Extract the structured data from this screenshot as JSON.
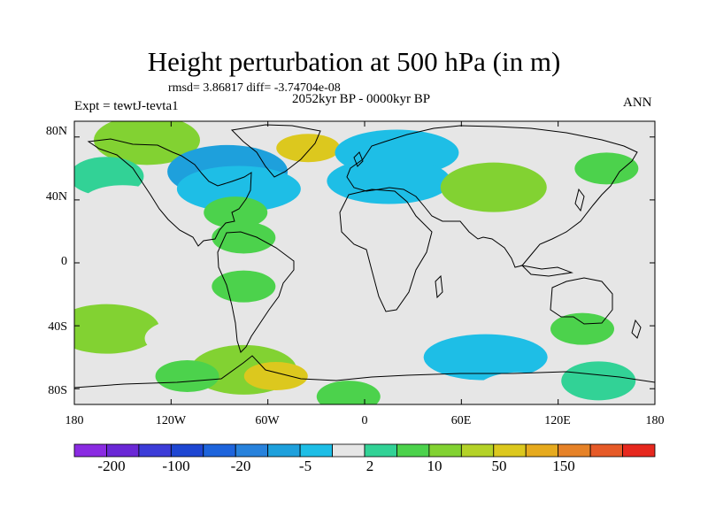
{
  "title": "Height perturbation at 500 hPa (in m)",
  "stats_text": "rmsd= 3.86817 diff= -3.74704e-08",
  "period_text": "2052kyr BP - 0000kyr BP",
  "experiment_text": "Expt = tewtJ-tevta1",
  "season_text": "ANN",
  "map": {
    "projection": "cylindrical equidistant",
    "lon_range": [
      -180,
      180
    ],
    "lat_range": [
      -90,
      90
    ],
    "background_color": "#e6e6e6",
    "x_tick_labels": [
      "180",
      "120W",
      "60W",
      "0",
      "60E",
      "120E",
      "180"
    ],
    "y_tick_labels": [
      "80N",
      "40N",
      "0",
      "40S",
      "80S"
    ],
    "anomaly_regions": [
      {
        "lon": -135,
        "lat": 78,
        "class": 11
      },
      {
        "lon": -160,
        "lat": 55,
        "class": 9
      },
      {
        "lon": -150,
        "lat": 37,
        "class": 8
      },
      {
        "lon": -85,
        "lat": 58,
        "class": 6
      },
      {
        "lon": -78,
        "lat": 47,
        "class": 7
      },
      {
        "lon": -35,
        "lat": 73,
        "class": 13
      },
      {
        "lon": -80,
        "lat": 32,
        "class": 10
      },
      {
        "lon": -75,
        "lat": 16,
        "class": 10
      },
      {
        "lon": 20,
        "lat": 70,
        "class": 7
      },
      {
        "lon": -5,
        "lat": 47,
        "class": 8
      },
      {
        "lon": 15,
        "lat": 52,
        "class": 7
      },
      {
        "lon": 80,
        "lat": 48,
        "class": 11
      },
      {
        "lon": 150,
        "lat": 60,
        "class": 10
      },
      {
        "lon": 145,
        "lat": 30,
        "class": 8
      },
      {
        "lon": -160,
        "lat": -42,
        "class": 11
      },
      {
        "lon": -110,
        "lat": -48,
        "class": 8
      },
      {
        "lon": -75,
        "lat": -68,
        "class": 11
      },
      {
        "lon": -55,
        "lat": -72,
        "class": 13
      },
      {
        "lon": -110,
        "lat": -72,
        "class": 10
      },
      {
        "lon": 30,
        "lat": -50,
        "class": 8
      },
      {
        "lon": 75,
        "lat": -60,
        "class": 7
      },
      {
        "lon": 95,
        "lat": -82,
        "class": 8
      },
      {
        "lon": 135,
        "lat": -42,
        "class": 10
      },
      {
        "lon": 145,
        "lat": -75,
        "class": 9
      },
      {
        "lon": -75,
        "lat": -15,
        "class": 10
      },
      {
        "lon": -10,
        "lat": -85,
        "class": 10
      }
    ]
  },
  "colorbar": {
    "colors": [
      "#8a2be2",
      "#6a28d6",
      "#3c3cd8",
      "#1e46d2",
      "#1e64dc",
      "#2882dc",
      "#1ea0dc",
      "#1ebee6",
      "#e6e6e6",
      "#32d296",
      "#4cd24c",
      "#82d232",
      "#b4d228",
      "#dcc81e",
      "#e6aa1e",
      "#e68228",
      "#e65a28",
      "#e6281e"
    ],
    "labels": [
      "-200",
      "-100",
      "-20",
      "-5",
      "2",
      "10",
      "50",
      "150"
    ]
  }
}
